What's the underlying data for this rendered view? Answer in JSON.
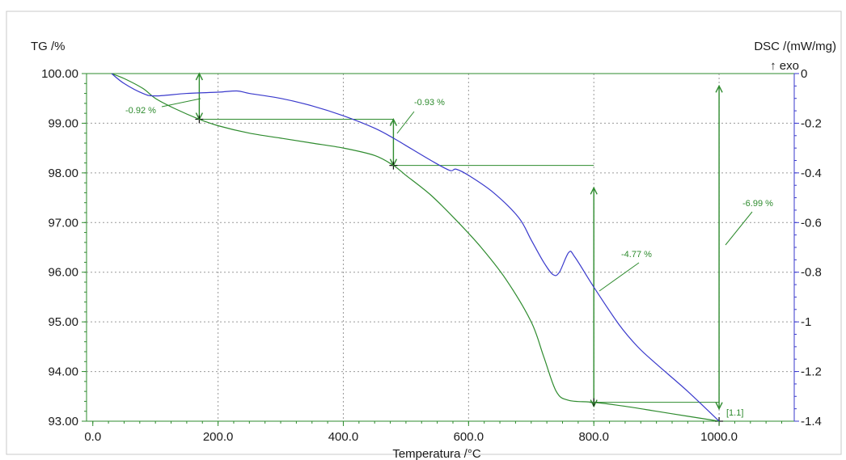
{
  "chart_data": {
    "type": "line",
    "x_axis": {
      "label": "Temperatura /°C",
      "range": [
        -10,
        1120
      ],
      "ticks": [
        0,
        200,
        400,
        600,
        800,
        1000
      ],
      "tick_labels": [
        "0.0",
        "200.0",
        "400.0",
        "600.0",
        "800.0",
        "1000.0"
      ]
    },
    "y_left": {
      "label": "TG /%",
      "range": [
        93.0,
        100.0
      ],
      "ticks": [
        93,
        94,
        95,
        96,
        97,
        98,
        99,
        100
      ],
      "tick_labels": [
        "93.00",
        "94.00",
        "95.00",
        "96.00",
        "97.00",
        "98.00",
        "99.00",
        "100.00"
      ]
    },
    "y_right": {
      "label": "DSC /(mW/mg)",
      "sublabel": "↑ exo",
      "range": [
        -1.4,
        0.0
      ],
      "ticks": [
        0,
        -0.2,
        -0.4,
        -0.6,
        -0.8,
        -1.0,
        -1.2,
        -1.4
      ],
      "tick_labels": [
        "0",
        "-0.2",
        "-0.4",
        "-0.6",
        "-0.8",
        "-1",
        "-1.2",
        "-1.4"
      ]
    },
    "grid": true,
    "series": [
      {
        "axis": "left",
        "color": "#2e8b2e",
        "x": [
          30,
          50,
          80,
          100,
          130,
          170,
          200,
          250,
          300,
          350,
          400,
          450,
          480,
          500,
          540,
          580,
          620,
          660,
          700,
          720,
          740,
          760,
          800,
          850,
          900,
          950,
          1000
        ],
        "y": [
          100.0,
          99.9,
          99.7,
          99.5,
          99.3,
          99.08,
          98.95,
          98.8,
          98.7,
          98.6,
          98.5,
          98.35,
          98.15,
          97.95,
          97.55,
          97.05,
          96.5,
          95.85,
          95.0,
          94.3,
          93.6,
          93.42,
          93.38,
          93.3,
          93.2,
          93.1,
          93.0
        ]
      },
      {
        "axis": "right",
        "color": "#3a3acc",
        "x": [
          30,
          50,
          80,
          100,
          150,
          200,
          230,
          250,
          300,
          350,
          400,
          450,
          480,
          500,
          540,
          570,
          580,
          600,
          640,
          680,
          700,
          720,
          735,
          745,
          760,
          770,
          800,
          840,
          870,
          900,
          950,
          1000
        ],
        "y": [
          0.0,
          -0.04,
          -0.08,
          -0.09,
          -0.08,
          -0.075,
          -0.07,
          -0.08,
          -0.1,
          -0.13,
          -0.17,
          -0.22,
          -0.26,
          -0.29,
          -0.35,
          -0.39,
          -0.385,
          -0.41,
          -0.48,
          -0.58,
          -0.67,
          -0.76,
          -0.81,
          -0.8,
          -0.72,
          -0.74,
          -0.86,
          -1.01,
          -1.1,
          -1.17,
          -1.28,
          -1.4
        ]
      }
    ],
    "annotations": [
      {
        "text": "-0.92 %"
      },
      {
        "text": "-0.93 %"
      },
      {
        "text": "-4.77 %"
      },
      {
        "text": "-6.99 %"
      },
      {
        "text": "[1.1]"
      }
    ],
    "step_markers": [
      {
        "x_start": 170,
        "x_end": 480,
        "y_top": 99.08,
        "y_bottom": 98.15,
        "label": "-0.93 %"
      },
      {
        "x_start": 30,
        "x_end": 170,
        "y_top": 100.0,
        "y_bottom": 99.08,
        "label": "-0.92 %"
      },
      {
        "x_start": 480,
        "x_end": 800,
        "y_top": 98.15,
        "y_bottom": 93.38,
        "label": "-4.77 %"
      },
      {
        "x_start": 30,
        "x_end": 1000,
        "y_top": 100.0,
        "y_bottom": 93.0,
        "label": "-6.99 %"
      }
    ]
  }
}
